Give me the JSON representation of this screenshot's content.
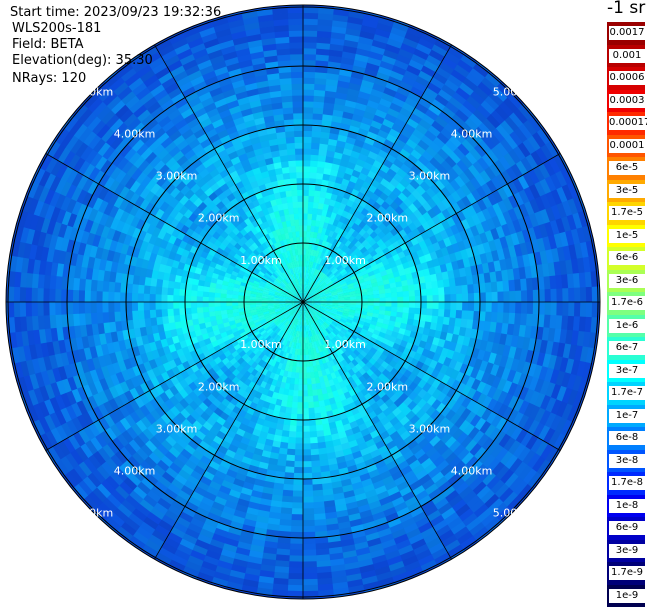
{
  "header": {
    "start_time": "Start time: 2023/09/23 19:32:36",
    "instrument": "WLS200s-181",
    "field": "Field: BETA",
    "elevation": "Elevation(deg): 35.30",
    "nrays": "NRays: 120"
  },
  "colorbar": {
    "units": "-1 sr",
    "labels": [
      "0.0017",
      "0.001",
      "0.0006",
      "0.0003",
      "0.00017",
      "0.0001",
      "6e-5",
      "3e-5",
      "1.7e-5",
      "1e-5",
      "6e-6",
      "3e-6",
      "1.7e-6",
      "1e-6",
      "6e-7",
      "3e-7",
      "1.7e-7",
      "1e-7",
      "6e-8",
      "3e-8",
      "1.7e-8",
      "1e-8",
      "6e-9",
      "3e-9",
      "1.7e-9",
      "1e-9"
    ],
    "colors": [
      "#9a0000",
      "#b80000",
      "#d60000",
      "#f00000",
      "#ff2a00",
      "#ff5500",
      "#ff8000",
      "#ffaa00",
      "#ffd500",
      "#ffff00",
      "#d4ff2a",
      "#aaff55",
      "#7fff80",
      "#55ffaa",
      "#2affd4",
      "#00ffff",
      "#00d4ff",
      "#00aaff",
      "#0080ff",
      "#0055ff",
      "#002aff",
      "#0000f0",
      "#0000c8",
      "#0000a0",
      "#000078",
      "#000050"
    ]
  },
  "chart_data": {
    "type": "ppi-polar",
    "field": "BETA",
    "units": "-1 sr",
    "elevation_deg": 35.3,
    "nrays": 120,
    "start_time": "2023/09/23 19:32:36",
    "range_rings_km": [
      1,
      2,
      3,
      4,
      5
    ],
    "ring_labels": [
      "1.00km",
      "2.00km",
      "3.00km",
      "4.00km",
      "5.00km"
    ],
    "spoke_angles_deg": [
      0,
      30,
      60,
      90,
      120,
      150,
      180,
      210,
      240,
      270,
      300,
      330
    ],
    "max_range_km": 5.1,
    "typical_value_by_range": [
      {
        "range_km": 1,
        "value": "3e-7"
      },
      {
        "range_km": 2,
        "value": "1.7e-7"
      },
      {
        "range_km": 3,
        "value": "1e-7"
      },
      {
        "range_km": 4,
        "value": "6e-8"
      },
      {
        "range_km": 5,
        "value": "3e-8"
      }
    ]
  }
}
